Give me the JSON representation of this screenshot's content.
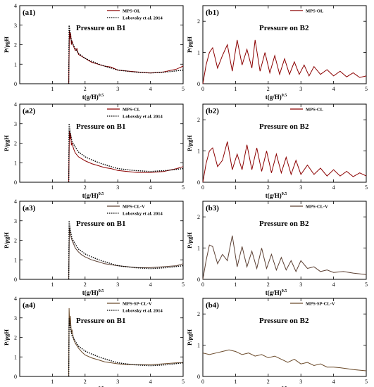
{
  "figure": {
    "colors": {
      "mps": "#8B0000",
      "mps_cl_v": "#5C4033",
      "mps_sp": "#6B4A2A",
      "ref": "#000000"
    },
    "xlabel_base": "t(g/H)",
    "xlabel_exp": "0.5",
    "ylabel": "P/ρgH"
  },
  "chart_data": [
    {
      "id": "a1",
      "panel_label": "(a1)",
      "title": "Pressure on B1",
      "type": "line",
      "xlim": [
        0,
        5
      ],
      "ylim": [
        0,
        4
      ],
      "xticks": [
        1,
        2,
        3,
        4,
        5
      ],
      "yticks": [
        0,
        1,
        2,
        3,
        4
      ],
      "legend": "top-right",
      "series": [
        {
          "name": "MPS-OL",
          "style": "solid",
          "color": "#8B0000",
          "x": [
            1.5,
            1.52,
            1.54,
            1.56,
            1.58,
            1.6,
            1.65,
            1.7,
            1.75,
            1.8,
            1.9,
            2.0,
            2.2,
            2.4,
            2.6,
            2.8,
            3.0,
            3.3,
            3.6,
            4.0,
            4.4,
            4.8,
            5.0
          ],
          "y": [
            0.0,
            2.7,
            2.3,
            2.6,
            2.0,
            2.2,
            1.9,
            1.7,
            1.8,
            1.5,
            1.4,
            1.3,
            1.1,
            1.0,
            0.9,
            0.85,
            0.7,
            0.65,
            0.6,
            0.55,
            0.6,
            0.75,
            0.9
          ]
        },
        {
          "name": "Lobovsky et al. 2014",
          "style": "dotted",
          "color": "#000000",
          "x": [
            1.5,
            1.51,
            1.55,
            1.6,
            1.7,
            1.8,
            2.0,
            2.2,
            2.5,
            2.8,
            3.0,
            3.5,
            4.0,
            4.5,
            5.0
          ],
          "y": [
            0.0,
            3.0,
            2.5,
            2.1,
            1.8,
            1.55,
            1.3,
            1.15,
            0.95,
            0.8,
            0.7,
            0.6,
            0.55,
            0.6,
            0.7
          ]
        }
      ]
    },
    {
      "id": "b1",
      "panel_label": "(b1)",
      "title": "Pressure on B2",
      "type": "line",
      "xlim": [
        0,
        5
      ],
      "ylim": [
        0,
        2.5
      ],
      "xticks": [
        0,
        1,
        2,
        3,
        4,
        5
      ],
      "yticks": [
        0,
        1,
        2
      ],
      "legend": "top-right",
      "series": [
        {
          "name": "MPS-OL",
          "style": "solid",
          "color": "#8B0000",
          "x": [
            0.0,
            0.1,
            0.2,
            0.3,
            0.45,
            0.6,
            0.75,
            0.9,
            1.05,
            1.2,
            1.35,
            1.5,
            1.6,
            1.75,
            1.9,
            2.05,
            2.2,
            2.35,
            2.5,
            2.65,
            2.8,
            2.95,
            3.1,
            3.25,
            3.4,
            3.6,
            3.8,
            4.0,
            4.2,
            4.4,
            4.6,
            4.8,
            5.0
          ],
          "y": [
            0.0,
            0.6,
            1.0,
            1.15,
            0.5,
            0.9,
            1.25,
            0.4,
            1.4,
            0.6,
            1.1,
            0.5,
            1.4,
            0.4,
            1.0,
            0.35,
            0.9,
            0.3,
            0.8,
            0.3,
            0.7,
            0.3,
            0.6,
            0.25,
            0.55,
            0.3,
            0.45,
            0.25,
            0.4,
            0.22,
            0.35,
            0.2,
            0.25
          ]
        }
      ]
    },
    {
      "id": "a2",
      "panel_label": "(a2)",
      "title": "Pressure on B1",
      "type": "line",
      "xlim": [
        0,
        5
      ],
      "ylim": [
        0,
        4
      ],
      "xticks": [
        1,
        2,
        3,
        4,
        5
      ],
      "yticks": [
        0,
        1,
        2,
        3,
        4
      ],
      "legend": "top-right",
      "series": [
        {
          "name": "MPS-CL",
          "style": "solid",
          "color": "#8B0000",
          "x": [
            1.5,
            1.52,
            1.54,
            1.56,
            1.58,
            1.6,
            1.65,
            1.7,
            1.8,
            1.9,
            2.0,
            2.2,
            2.4,
            2.6,
            2.8,
            3.0,
            3.3,
            3.6,
            4.0,
            4.4,
            4.8,
            5.0
          ],
          "y": [
            0.0,
            2.6,
            2.2,
            2.5,
            1.9,
            2.0,
            1.7,
            1.5,
            1.3,
            1.2,
            1.1,
            0.95,
            0.85,
            0.75,
            0.7,
            0.6,
            0.55,
            0.5,
            0.5,
            0.55,
            0.7,
            0.8
          ]
        },
        {
          "name": "Lobovsky et al. 2014",
          "style": "dotted",
          "color": "#000000",
          "x": [
            1.5,
            1.51,
            1.55,
            1.6,
            1.7,
            1.8,
            2.0,
            2.2,
            2.5,
            2.8,
            3.0,
            3.5,
            4.0,
            4.5,
            5.0
          ],
          "y": [
            0.0,
            3.0,
            2.5,
            2.1,
            1.8,
            1.55,
            1.3,
            1.15,
            0.95,
            0.8,
            0.7,
            0.6,
            0.55,
            0.6,
            0.7
          ]
        }
      ]
    },
    {
      "id": "b2",
      "panel_label": "(b2)",
      "title": "Pressure on B2",
      "type": "line",
      "xlim": [
        0,
        5
      ],
      "ylim": [
        0,
        2.5
      ],
      "xticks": [
        0,
        1,
        2,
        3,
        4,
        5
      ],
      "yticks": [
        0,
        1,
        2
      ],
      "legend": "top-right",
      "series": [
        {
          "name": "MPS-CL",
          "style": "solid",
          "color": "#8B0000",
          "x": [
            0.0,
            0.1,
            0.2,
            0.3,
            0.45,
            0.6,
            0.75,
            0.9,
            1.05,
            1.2,
            1.35,
            1.5,
            1.65,
            1.8,
            1.95,
            2.1,
            2.25,
            2.4,
            2.55,
            2.7,
            2.85,
            3.0,
            3.2,
            3.4,
            3.6,
            3.8,
            4.0,
            4.2,
            4.4,
            4.6,
            4.8,
            5.0
          ],
          "y": [
            0.0,
            0.6,
            1.0,
            1.1,
            0.5,
            0.7,
            1.3,
            0.4,
            0.9,
            0.4,
            1.2,
            0.4,
            1.1,
            0.35,
            1.0,
            0.3,
            0.9,
            0.3,
            0.8,
            0.25,
            0.7,
            0.25,
            0.55,
            0.25,
            0.45,
            0.2,
            0.4,
            0.2,
            0.35,
            0.18,
            0.3,
            0.2
          ]
        }
      ]
    },
    {
      "id": "a3",
      "panel_label": "(a3)",
      "title": "Pressure on B1",
      "type": "line",
      "xlim": [
        0,
        5
      ],
      "ylim": [
        0,
        4
      ],
      "xticks": [
        1,
        2,
        3,
        4,
        5
      ],
      "yticks": [
        0,
        1,
        2,
        3,
        4
      ],
      "legend": "top-right",
      "series": [
        {
          "name": "MPS-CL-V",
          "style": "solid",
          "color": "#5C4033",
          "x": [
            1.5,
            1.52,
            1.55,
            1.6,
            1.65,
            1.7,
            1.8,
            1.9,
            2.0,
            2.2,
            2.4,
            2.6,
            2.8,
            3.0,
            3.3,
            3.6,
            4.0,
            4.4,
            4.8,
            5.0
          ],
          "y": [
            0.0,
            2.6,
            2.3,
            2.0,
            1.8,
            1.6,
            1.4,
            1.25,
            1.15,
            1.0,
            0.9,
            0.8,
            0.75,
            0.7,
            0.65,
            0.6,
            0.6,
            0.65,
            0.7,
            0.8
          ]
        },
        {
          "name": "Lobovsky et al. 2014",
          "style": "dotted",
          "color": "#000000",
          "x": [
            1.5,
            1.51,
            1.55,
            1.6,
            1.7,
            1.8,
            2.0,
            2.2,
            2.5,
            2.8,
            3.0,
            3.5,
            4.0,
            4.5,
            5.0
          ],
          "y": [
            0.0,
            3.0,
            2.5,
            2.1,
            1.8,
            1.55,
            1.3,
            1.15,
            0.95,
            0.8,
            0.7,
            0.6,
            0.55,
            0.6,
            0.7
          ]
        }
      ]
    },
    {
      "id": "b3",
      "panel_label": "(b3)",
      "title": "Pressure on B2",
      "type": "line",
      "xlim": [
        0,
        5
      ],
      "ylim": [
        0,
        2.5
      ],
      "xticks": [
        0,
        1,
        2,
        3,
        4,
        5
      ],
      "yticks": [
        0,
        1,
        2
      ],
      "legend": "top-right",
      "series": [
        {
          "name": "MPS-CL-V",
          "style": "solid",
          "color": "#5C4033",
          "x": [
            0.0,
            0.1,
            0.2,
            0.3,
            0.45,
            0.6,
            0.75,
            0.9,
            1.05,
            1.2,
            1.35,
            1.5,
            1.65,
            1.8,
            1.95,
            2.1,
            2.25,
            2.4,
            2.55,
            2.7,
            2.85,
            3.0,
            3.2,
            3.4,
            3.6,
            3.8,
            4.0,
            4.3,
            4.6,
            5.0
          ],
          "y": [
            0.0,
            0.6,
            1.1,
            1.05,
            0.5,
            0.8,
            0.6,
            1.4,
            0.4,
            1.05,
            0.4,
            0.9,
            0.35,
            1.0,
            0.35,
            0.8,
            0.3,
            0.7,
            0.3,
            0.6,
            0.25,
            0.6,
            0.35,
            0.4,
            0.25,
            0.3,
            0.22,
            0.25,
            0.2,
            0.15
          ]
        }
      ]
    },
    {
      "id": "a4",
      "panel_label": "(a4)",
      "title": "Pressure on B1",
      "type": "line",
      "xlim": [
        0,
        5
      ],
      "ylim": [
        0,
        4
      ],
      "xticks": [
        1,
        2,
        3,
        4,
        5
      ],
      "yticks": [
        0,
        1,
        2,
        3,
        4
      ],
      "legend": "top-right",
      "series": [
        {
          "name": "MPS-SP-CL-V",
          "style": "solid",
          "color": "#6B4A2A",
          "x": [
            1.5,
            1.51,
            1.53,
            1.55,
            1.58,
            1.6,
            1.65,
            1.7,
            1.8,
            1.9,
            2.0,
            2.2,
            2.4,
            2.6,
            2.8,
            3.0,
            3.3,
            3.6,
            4.0,
            4.4,
            4.8,
            5.0
          ],
          "y": [
            0.0,
            3.5,
            2.6,
            3.1,
            2.2,
            2.4,
            1.9,
            1.7,
            1.45,
            1.25,
            1.1,
            0.95,
            0.85,
            0.75,
            0.7,
            0.65,
            0.6,
            0.6,
            0.6,
            0.65,
            0.7,
            0.7
          ]
        },
        {
          "name": "Lobovsky et al. 2014",
          "style": "dotted",
          "color": "#000000",
          "x": [
            1.5,
            1.51,
            1.55,
            1.6,
            1.7,
            1.8,
            2.0,
            2.2,
            2.5,
            2.8,
            3.0,
            3.5,
            4.0,
            4.5,
            5.0
          ],
          "y": [
            0.0,
            3.0,
            2.5,
            2.1,
            1.8,
            1.55,
            1.3,
            1.15,
            0.95,
            0.8,
            0.7,
            0.6,
            0.55,
            0.6,
            0.7
          ]
        }
      ]
    },
    {
      "id": "b4",
      "panel_label": "(b4)",
      "title": "Pressure on B2",
      "type": "line",
      "xlim": [
        0,
        5
      ],
      "ylim": [
        0,
        2.5
      ],
      "xticks": [
        0,
        1,
        2,
        3,
        4,
        5
      ],
      "yticks": [
        0,
        1,
        2
      ],
      "legend": "top-right",
      "series": [
        {
          "name": "MPS-SP-CL-V",
          "style": "solid",
          "color": "#6B4A2A",
          "x": [
            0.0,
            0.2,
            0.4,
            0.6,
            0.8,
            1.0,
            1.2,
            1.4,
            1.6,
            1.8,
            2.0,
            2.2,
            2.4,
            2.6,
            2.8,
            3.0,
            3.2,
            3.4,
            3.6,
            3.8,
            4.0,
            4.2,
            4.4,
            4.6,
            4.8,
            5.0
          ],
          "y": [
            0.75,
            0.7,
            0.75,
            0.8,
            0.85,
            0.8,
            0.7,
            0.75,
            0.65,
            0.7,
            0.6,
            0.65,
            0.55,
            0.45,
            0.55,
            0.4,
            0.45,
            0.35,
            0.4,
            0.3,
            0.3,
            0.28,
            0.25,
            0.22,
            0.2,
            0.18
          ]
        }
      ]
    }
  ]
}
